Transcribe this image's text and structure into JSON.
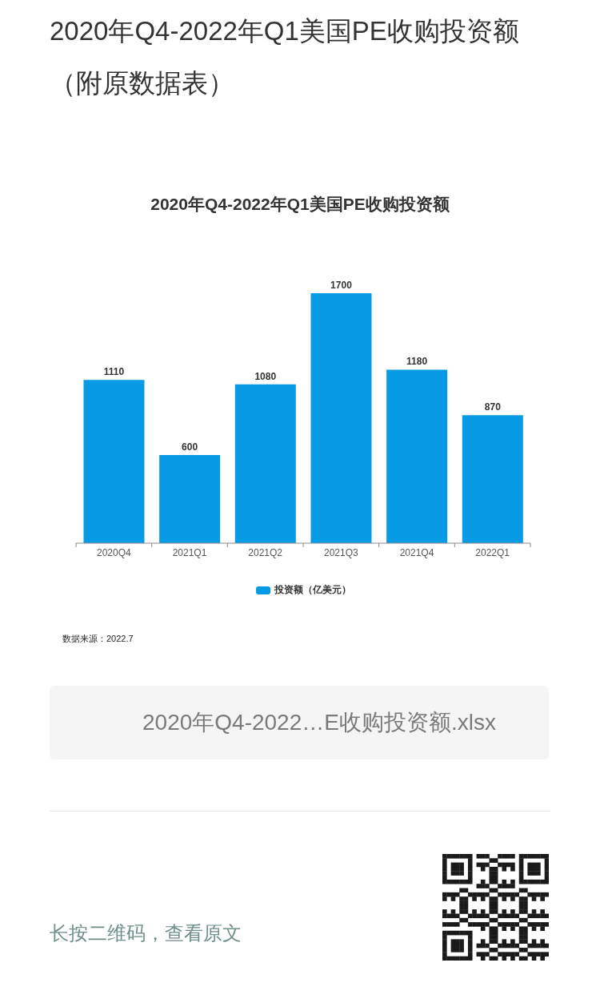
{
  "chart_data": {
    "type": "bar",
    "title": "2020年Q4-2022年Q1美国PE收购投资额（附原数据表）",
    "subtitle": "2020年Q4-2022年Q1美国PE收购投资额",
    "categories": [
      "2020Q4",
      "2021Q1",
      "2021Q2",
      "2021Q3",
      "2021Q4",
      "2022Q1"
    ],
    "series": [
      {
        "name": "投资额（亿美元）",
        "color": "#079be6",
        "values": [
          1110,
          600,
          1080,
          1700,
          1180,
          870
        ]
      }
    ],
    "data_labels": true,
    "legend": "bottom",
    "tick_labels": "x",
    "annotations": [
      "数据来源：2022.7",
      "2020年Q4-2022…E收购投资额.xlsx",
      "长按二维码，查看原文"
    ]
  }
}
